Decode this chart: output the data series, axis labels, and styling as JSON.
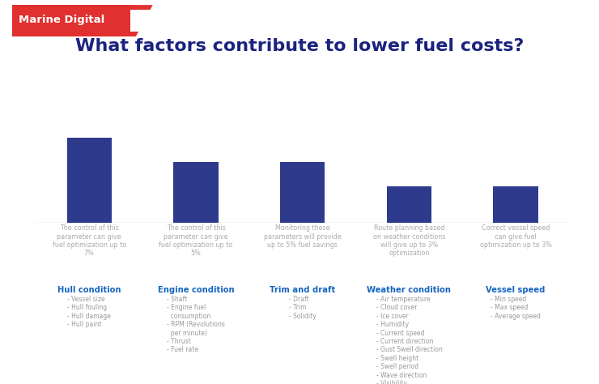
{
  "title": "What factors contribute to lower fuel costs?",
  "title_color": "#1a237e",
  "title_fontsize": 16,
  "background_color": "#ffffff",
  "bar_color": "#2e3a8c",
  "values": [
    7,
    5,
    5,
    3,
    3
  ],
  "bar_descriptions": [
    "The control of this\nparameter can give\nfuel optimization up to\n7%",
    "The control of this\nparameter can give\nfuel optimization up to\n5%",
    "Monitoring these\nparameters will provide\nup to 5% fuel savings",
    "Route planning based\non weather conditions\nwill give up to 3%\noptimization",
    "Correct vessel speed\ncan give fuel\noptimization up to 3%"
  ],
  "category_labels": [
    "Hull condition",
    "Engine condition",
    "Trim and draft",
    "Weather condition",
    "Vessel speed"
  ],
  "category_label_color": "#1565c0",
  "sub_items": [
    "- Vessel size\n- Hull fouling\n- Hull damage\n- Hull paint",
    "- Shaft\n- Engine fuel\n  consumption\n- RPM (Revolutions\n  per minute)\n- Thrust\n- Fuel rate",
    "- Draft\n- Trim\n- Solidity",
    "- Air temperature\n- Cloud cover\n- Ice cover\n- Humidity\n- Current speed\n- Current direction\n- Gust Swell direction\n- Swell height\n- Swell period\n- Wave direction\n- Visibility\n- Water temperature\n- Sea level",
    "- Min speed\n- Max speed\n- Average speed"
  ],
  "desc_color": "#aaaaaa",
  "sub_items_color": "#999999",
  "logo_text": "Marine Digital",
  "logo_bg": "#e03030",
  "logo_text_color": "#ffffff"
}
